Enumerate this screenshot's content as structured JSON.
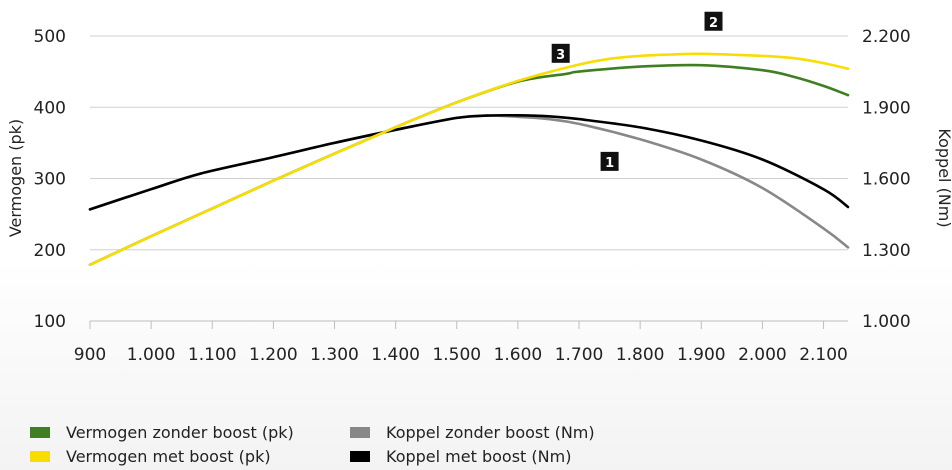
{
  "chart_data": {
    "type": "line",
    "ylabel": "Vermogen (pk)",
    "y2label": "Koppel (Nm)",
    "x_ticks": [
      {
        "value": 900,
        "label": "900"
      },
      {
        "value": 1000,
        "label": "1.000"
      },
      {
        "value": 1100,
        "label": "1.100"
      },
      {
        "value": 1200,
        "label": "1.200"
      },
      {
        "value": 1300,
        "label": "1.300"
      },
      {
        "value": 1400,
        "label": "1.400"
      },
      {
        "value": 1500,
        "label": "1.500"
      },
      {
        "value": 1600,
        "label": "1.600"
      },
      {
        "value": 1700,
        "label": "1.700"
      },
      {
        "value": 1800,
        "label": "1.800"
      },
      {
        "value": 1900,
        "label": "1.900"
      },
      {
        "value": 2000,
        "label": "2.000"
      },
      {
        "value": 2100,
        "label": "2.100"
      }
    ],
    "y_ticks": [
      {
        "value": 100,
        "label": "100"
      },
      {
        "value": 200,
        "label": "200"
      },
      {
        "value": 300,
        "label": "300"
      },
      {
        "value": 400,
        "label": "400"
      },
      {
        "value": 500,
        "label": "500"
      }
    ],
    "y2_ticks": [
      {
        "value": 1000,
        "label": "1.000"
      },
      {
        "value": 1300,
        "label": "1.300"
      },
      {
        "value": 1600,
        "label": "1.600"
      },
      {
        "value": 1900,
        "label": "1.900"
      },
      {
        "value": 2200,
        "label": "2.200"
      }
    ],
    "xlim": [
      900,
      2140
    ],
    "ylim": [
      100,
      500
    ],
    "y2lim": [
      1000,
      2200
    ],
    "grid": "horizontal",
    "legend_position": "bottom-left",
    "series": [
      {
        "name": "Koppel zonder boost (Nm)",
        "axis": "right",
        "color": "#888888",
        "x": [
          900,
          1000,
          1080,
          1200,
          1300,
          1400,
          1500,
          1550,
          1600,
          1650,
          1700,
          1800,
          1900,
          2000,
          2100,
          2140
        ],
        "y": [
          1470,
          1555,
          1620,
          1690,
          1750,
          1805,
          1855,
          1865,
          1860,
          1850,
          1830,
          1765,
          1680,
          1560,
          1390,
          1310
        ]
      },
      {
        "name": "Koppel met boost (Nm)",
        "axis": "right",
        "color": "#000000",
        "x": [
          900,
          1000,
          1080,
          1200,
          1300,
          1400,
          1500,
          1550,
          1600,
          1650,
          1700,
          1800,
          1900,
          2000,
          2100,
          2140
        ],
        "y": [
          1470,
          1555,
          1620,
          1690,
          1750,
          1805,
          1855,
          1865,
          1866,
          1862,
          1850,
          1815,
          1760,
          1680,
          1555,
          1480
        ]
      },
      {
        "name": "Vermogen zonder boost (pk)",
        "axis": "left",
        "color": "#3f7e22",
        "x": [
          900,
          1000,
          1100,
          1200,
          1300,
          1400,
          1500,
          1600,
          1680,
          1700,
          1800,
          1900,
          2000,
          2050,
          2100,
          2140
        ],
        "y": [
          179,
          219,
          258,
          297,
          335,
          372,
          407,
          436,
          447,
          450,
          457,
          459,
          452,
          443,
          430,
          417
        ]
      },
      {
        "name": "Vermogen met boost (pk)",
        "axis": "left",
        "color": "#f7de00",
        "x": [
          900,
          1000,
          1100,
          1200,
          1300,
          1400,
          1500,
          1600,
          1700,
          1750,
          1800,
          1850,
          1900,
          2000,
          2050,
          2100,
          2140
        ],
        "y": [
          179,
          219,
          258,
          297,
          335,
          372,
          407,
          437,
          460,
          468,
          472,
          474,
          475,
          472,
          469,
          462,
          454
        ]
      }
    ],
    "annotations": [
      {
        "text": "1",
        "x": 1750,
        "y_axis": "right",
        "y": 1670
      },
      {
        "text": "2",
        "x": 1920,
        "y_axis": "left",
        "y": 520
      },
      {
        "text": "3",
        "x": 1670,
        "y_axis": "left",
        "y": 475
      }
    ]
  },
  "legend": {
    "items": [
      {
        "label": "Vermogen zonder boost (pk)",
        "color": "#3f7e22"
      },
      {
        "label": "Koppel zonder boost (Nm)",
        "color": "#888888"
      },
      {
        "label": "Vermogen met boost (pk)",
        "color": "#f7de00"
      },
      {
        "label": "Koppel met boost (Nm)",
        "color": "#000000"
      }
    ]
  }
}
